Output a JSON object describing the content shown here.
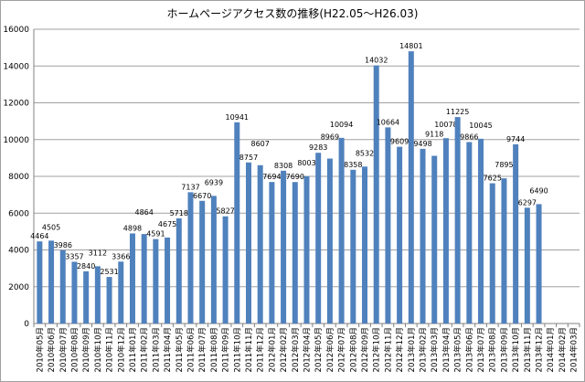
{
  "chart_data": {
    "type": "bar",
    "title": "ホームページアクセス数の推移(H22.05～H26.03)",
    "xlabel": "",
    "ylabel": "",
    "ylim": [
      0,
      16000
    ],
    "yticks": [
      "0",
      "2000",
      "4000",
      "6000",
      "8000",
      "10000",
      "12000",
      "14000",
      "16000"
    ],
    "grid": true,
    "legend": "none",
    "bar_color": "#4f81bd",
    "categories": [
      "2010年05月",
      "2010年06月",
      "2010年07月",
      "2010年08月",
      "2010年09月",
      "2010年10月",
      "2010年11月",
      "2010年12月",
      "2011年01月",
      "2011年02月",
      "2011年03月",
      "2011年04月",
      "2011年05月",
      "2011年06月",
      "2011年07月",
      "2011年08月",
      "2011年09月",
      "2011年10月",
      "2011年11月",
      "2011年12月",
      "2012年01月",
      "2012年02月",
      "2012年03月",
      "2012年04月",
      "2012年05月",
      "2012年06月",
      "2012年07月",
      "2012年08月",
      "2012年09月",
      "2012年10月",
      "2012年11月",
      "2012年12月",
      "2013年01月",
      "2013年02月",
      "2013年03月",
      "2013年04月",
      "2013年05月",
      "2013年06月",
      "2013年07月",
      "2013年08月",
      "2013年09月",
      "2013年10月",
      "2013年11月",
      "2013年12月",
      "2014年01月",
      "2014年02月",
      "2014年03月"
    ],
    "values": [
      4464,
      4505,
      3986,
      3357,
      2840,
      3112,
      2531,
      3366,
      4898,
      4864,
      4591,
      4675,
      5718,
      7137,
      6670,
      6939,
      5827,
      10941,
      8757,
      8607,
      7694,
      8308,
      7690,
      8003,
      9283,
      8969,
      10094,
      8358,
      8532,
      14032,
      10664,
      9609,
      14801,
      9498,
      9118,
      10078,
      11225,
      9866,
      10045,
      7625,
      7895,
      9744,
      6297,
      6490,
      null,
      null,
      null
    ]
  }
}
